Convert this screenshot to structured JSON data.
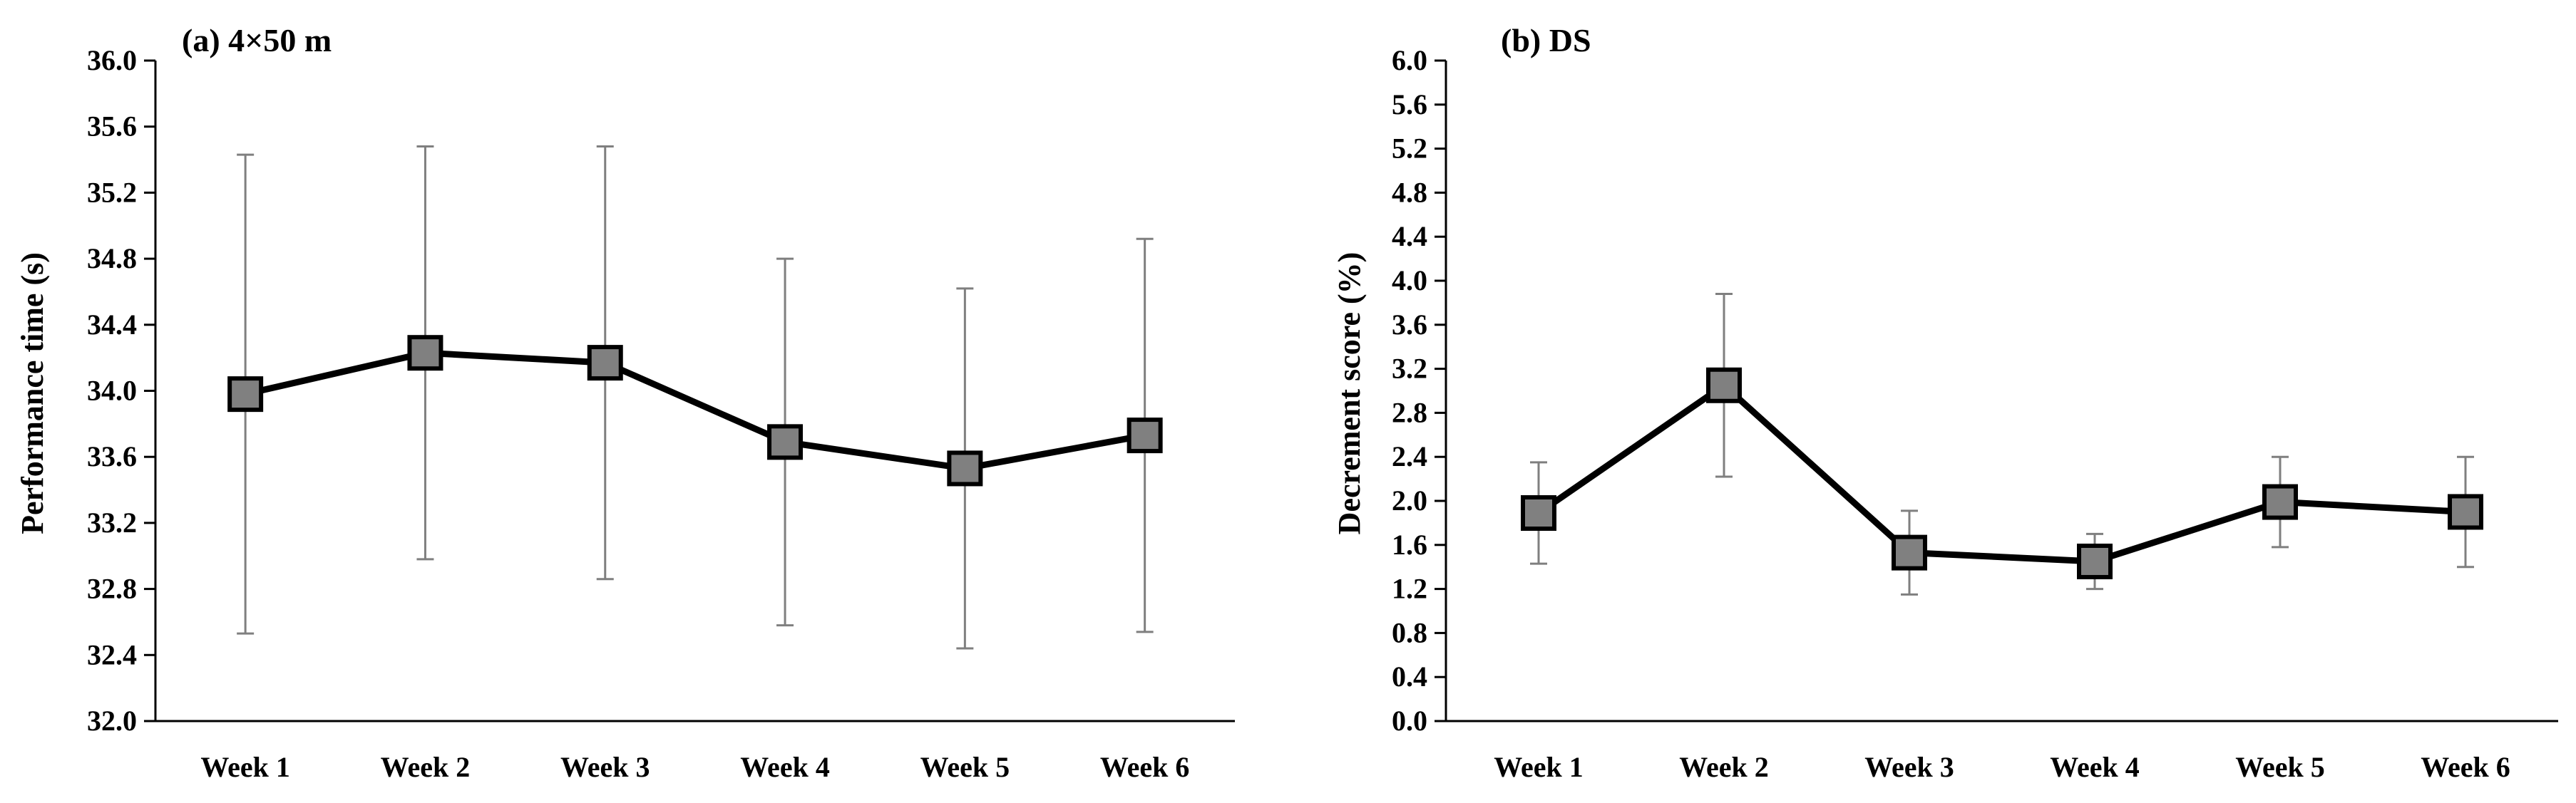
{
  "chart_data": [
    {
      "type": "line",
      "title": "(a) 4×50 m",
      "xlabel": "",
      "ylabel": "Performance time (s)",
      "categories": [
        "Week 1",
        "Week 2",
        "Week 3",
        "Week 4",
        "Week 5",
        "Week 6"
      ],
      "values": [
        33.98,
        34.23,
        34.17,
        33.69,
        33.53,
        33.73
      ],
      "errors": [
        1.45,
        1.25,
        1.31,
        1.11,
        1.09,
        1.19
      ],
      "ylim": [
        32.0,
        36.0
      ],
      "yticks": [
        "32.0",
        "32.4",
        "32.8",
        "33.2",
        "33.6",
        "34.0",
        "34.4",
        "34.8",
        "35.2",
        "35.6",
        "36.0"
      ],
      "grid": false,
      "colors": {
        "line": "#000000",
        "marker": "#808080",
        "error": "#7f7f7f"
      }
    },
    {
      "type": "line",
      "title": "(b) DS",
      "xlabel": "",
      "ylabel": "Decrement score (%)",
      "categories": [
        "Week 1",
        "Week 2",
        "Week 3",
        "Week 4",
        "Week 5",
        "Week 6"
      ],
      "values": [
        1.89,
        3.05,
        1.53,
        1.45,
        1.99,
        1.9
      ],
      "errors": [
        0.46,
        0.83,
        0.38,
        0.25,
        0.41,
        0.5
      ],
      "ylim": [
        0.0,
        6.0
      ],
      "yticks": [
        "0.0",
        "0.4",
        "0.8",
        "1.2",
        "1.6",
        "2.0",
        "2.4",
        "2.8",
        "3.2",
        "3.6",
        "4.0",
        "4.4",
        "4.8",
        "5.2",
        "5.6",
        "6.0"
      ],
      "grid": false,
      "colors": {
        "line": "#000000",
        "marker": "#808080",
        "error": "#7f7f7f"
      }
    }
  ]
}
